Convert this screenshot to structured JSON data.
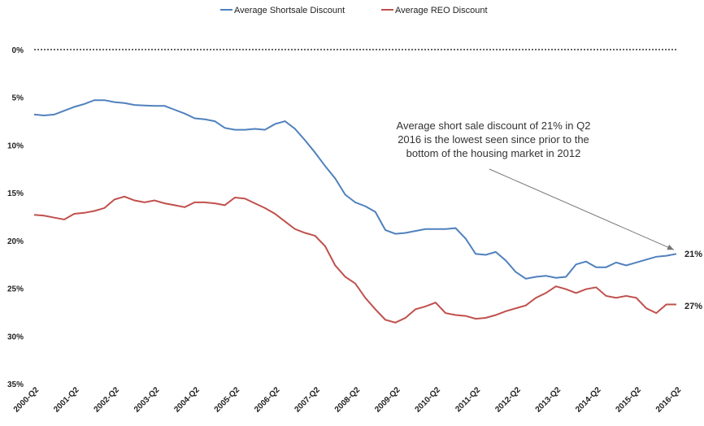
{
  "chart_data": {
    "type": "line",
    "title": "",
    "xlabel": "",
    "ylabel": "",
    "y_reversed": true,
    "ylim": [
      0,
      35
    ],
    "yticks": [
      0,
      5,
      10,
      15,
      20,
      25,
      30,
      35
    ],
    "ytick_labels": [
      "0%",
      "5%",
      "10%",
      "15%",
      "20%",
      "25%",
      "30%",
      "35%"
    ],
    "reference_line": {
      "value": 0,
      "style": "dotted"
    },
    "legend_position": "top-center",
    "xtick_labels": [
      "2000-Q2",
      "2001-Q2",
      "2002-Q2",
      "2003-Q2",
      "2004-Q2",
      "2005-Q2",
      "2006-Q2",
      "2007-Q2",
      "2008-Q2",
      "2009-Q2",
      "2010-Q2",
      "2011-Q2",
      "2012-Q2",
      "2013-Q2",
      "2014-Q2",
      "2015-Q2",
      "2016-Q2"
    ],
    "series": [
      {
        "name": "Average Shortsale Discount",
        "color": "#4f81bd",
        "end_label": "21%",
        "values": [
          6.8,
          6.9,
          6.8,
          6.4,
          6.0,
          5.7,
          5.3,
          5.3,
          5.5,
          5.6,
          5.8,
          5.85,
          5.9,
          5.9,
          6.3,
          6.7,
          7.2,
          7.3,
          7.5,
          8.2,
          8.4,
          8.4,
          8.3,
          8.4,
          7.8,
          7.5,
          8.3,
          9.5,
          10.8,
          12.2,
          13.5,
          15.2,
          16.0,
          16.4,
          17.0,
          18.9,
          19.3,
          19.2,
          19.0,
          18.8,
          18.8,
          18.8,
          18.7,
          19.8,
          21.4,
          21.5,
          21.2,
          22.1,
          23.3,
          24.0,
          23.8,
          23.7,
          23.9,
          23.8,
          22.5,
          22.2,
          22.8,
          22.8,
          22.3,
          22.6,
          22.3,
          22.0,
          21.7,
          21.6,
          21.4
        ]
      },
      {
        "name": "Average REO Discount",
        "color": "#c0504d",
        "end_label": "27%",
        "values": [
          17.3,
          17.4,
          17.6,
          17.8,
          17.2,
          17.1,
          16.9,
          16.6,
          15.7,
          15.4,
          15.8,
          16.0,
          15.8,
          16.1,
          16.3,
          16.5,
          16.0,
          16.0,
          16.1,
          16.3,
          15.5,
          15.6,
          16.1,
          16.6,
          17.2,
          18.0,
          18.8,
          19.2,
          19.5,
          20.6,
          22.6,
          23.8,
          24.5,
          26.0,
          27.2,
          28.3,
          28.6,
          28.1,
          27.2,
          26.9,
          26.5,
          27.6,
          27.8,
          27.9,
          28.2,
          28.1,
          27.8,
          27.4,
          27.1,
          26.8,
          26.0,
          25.5,
          24.8,
          25.1,
          25.5,
          25.1,
          24.9,
          25.8,
          26.0,
          25.8,
          26.0,
          27.1,
          27.6,
          26.7,
          26.7
        ]
      }
    ],
    "annotation": {
      "lines": [
        "Average short sale discount of 21% in Q2",
        "2016 is the lowest seen since prior to the",
        "bottom of the housing market in 2012"
      ],
      "arrow_target": {
        "series": 0,
        "index": 64
      }
    }
  }
}
